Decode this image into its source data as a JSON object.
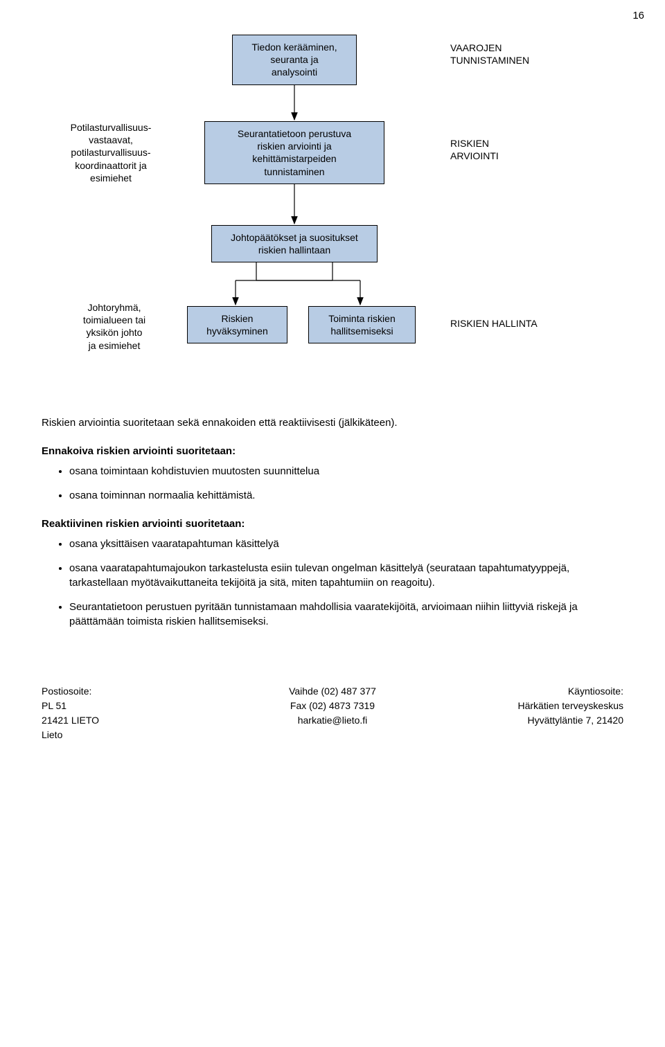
{
  "page_number": "16",
  "colors": {
    "box_fill": "#b8cce4",
    "box_border": "#000000",
    "text": "#000000",
    "bg": "#ffffff",
    "arrow": "#000000"
  },
  "flow": {
    "box_tiedon": "Tiedon kerääminen,\nseuranta ja\nanalysointi",
    "label_vaarojen": "VAAROJEN\nTUNNISTAMINEN",
    "left_potilas": "Potilasturvallisuus-\nvastaavat,\npotilasturvallisuus-\nkoordinaattorit ja\nesimiehet",
    "box_seuranta": "Seurantatietoon perustuva\nriskien arviointi ja\nkehittämistarpeiden\ntunnistaminen",
    "label_riskien_arviointi": "RISKIEN\nARVIOINTI",
    "box_johtopaatokset": "Johtopäätökset ja suositukset\nriskien hallintaan",
    "left_johtoryhma": "Johtoryhmä,\ntoimialueen tai\nyksikön johto\nja esimiehet",
    "box_riskien_hyv": "Riskien\nhyväksyminen",
    "box_toiminta": "Toiminta riskien\nhallitsemiseksi",
    "label_riskien_hallinta": "RISKIEN HALLINTA"
  },
  "body": {
    "p1": "Riskien arviointia suoritetaan sekä ennakoiden että reaktiivisesti (jälkikäteen).",
    "h1": "Ennakoiva riskien arviointi suoritetaan:",
    "b1": [
      "osana toimintaan kohdistuvien muutosten suunnittelua",
      "osana toiminnan normaalia kehittämistä."
    ],
    "h2": "Reaktiivinen riskien arviointi suoritetaan:",
    "b2": [
      "osana yksittäisen vaaratapahtuman käsittelyä",
      "osana vaaratapahtumajoukon tarkastelusta esiin tulevan ongelman käsittelyä (seurataan tapahtumatyyppejä, tarkastellaan myötävaikuttaneita tekijöitä ja sitä, miten tapahtumiin on reagoitu).",
      "Seurantatietoon perustuen pyritään tunnistamaan mahdollisia vaaratekijöitä, arvioimaan niihin liittyviä riskejä ja päättämään toimista riskien hallitsemiseksi."
    ]
  },
  "footer": {
    "c1l1": "Postiosoite:",
    "c1l2": "PL 51",
    "c1l3": "21421 LIETO",
    "c1l4": "Lieto",
    "c2l1": "Vaihde (02) 487 377",
    "c2l2": "Fax (02) 4873 7319",
    "c2l3": "harkatie@lieto.fi",
    "c3l1": "Käyntiosoite:",
    "c3l2": "Härkätien terveyskeskus",
    "c3l3": "Hyvättyläntie 7, 21420"
  }
}
